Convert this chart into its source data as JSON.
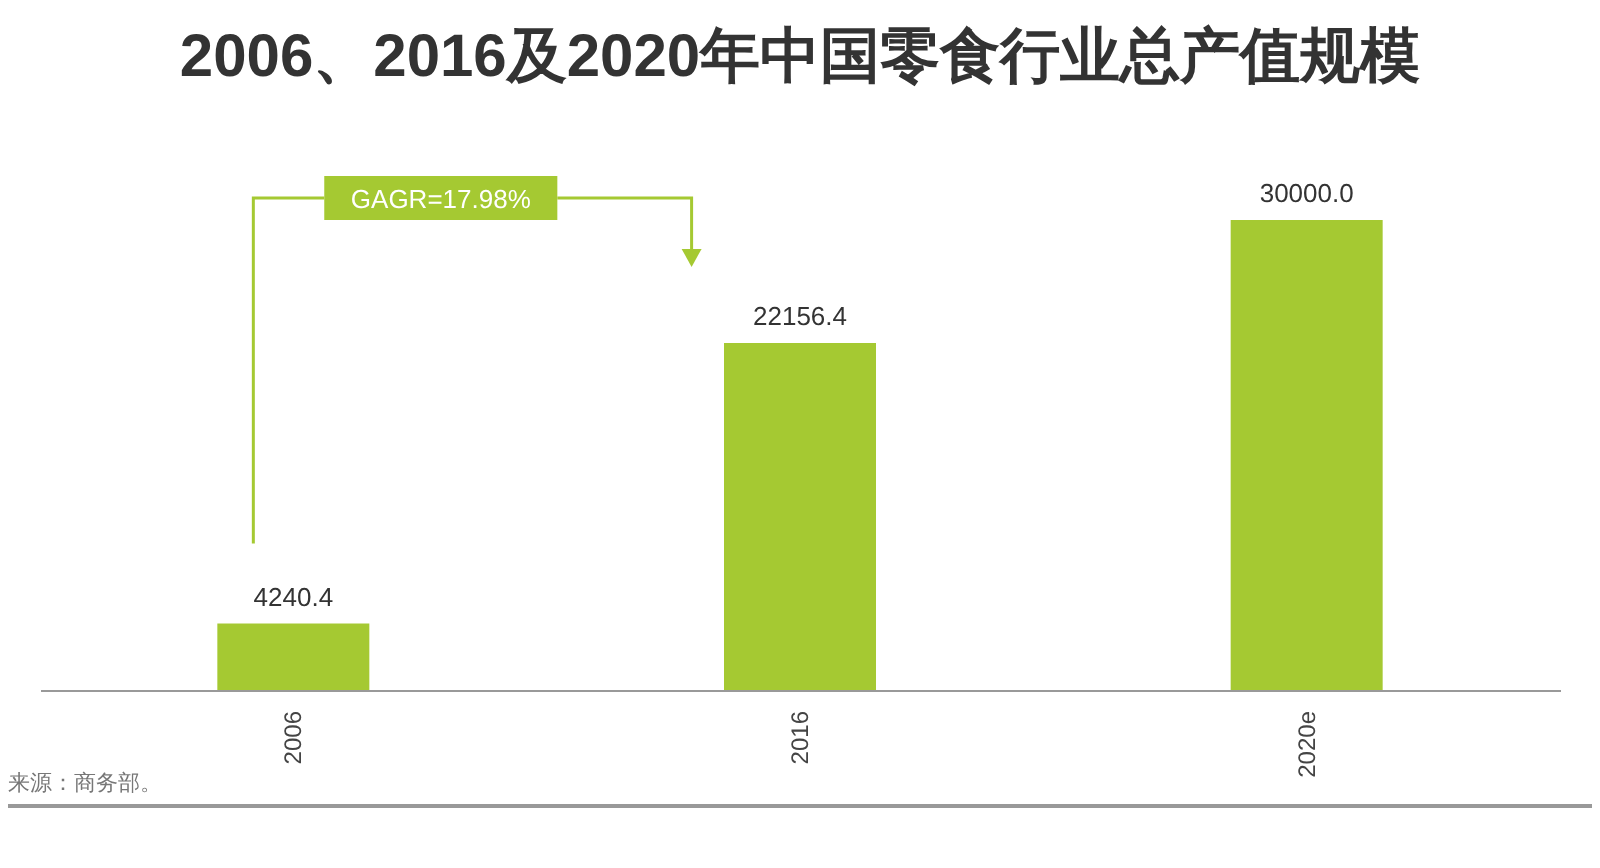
{
  "chart_data": {
    "type": "bar",
    "title": "2006、2016及2020年中国零食行业总产值规模",
    "categories": [
      "2006",
      "2016",
      "2020e"
    ],
    "values": [
      4240.4,
      22156.4,
      30000.0
    ],
    "value_labels": [
      "4240.4",
      "22156.4",
      "30000.0"
    ],
    "color": "#a5c932",
    "annotations": [
      "GAGR=17.98%",
      "来源：商务部。"
    ]
  }
}
